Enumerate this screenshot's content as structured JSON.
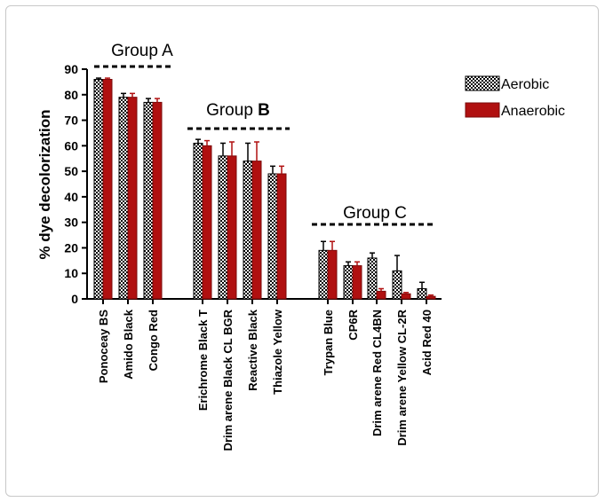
{
  "chart_data": {
    "type": "bar",
    "ylabel": "% dye decolorization",
    "xlabel": "",
    "ylim": [
      0,
      90
    ],
    "yticks": [
      0,
      10,
      20,
      30,
      40,
      50,
      60,
      70,
      80,
      90
    ],
    "grid": false,
    "legend_position": "top-right",
    "categories": [
      "Ponoceay BS",
      "Amido Black",
      "Congo Red",
      "Erichrome Black T",
      "Drim arene Black CL BGR",
      "Reactive Black",
      "Thiazole Yellow",
      "Trypan Blue",
      "CP6R",
      "Drim arene Red CL4BN",
      "Drim arene Yellow CL-2R",
      "Acid Red 40"
    ],
    "series": [
      {
        "name": "Aerobic",
        "color": "#000000",
        "pattern": "checker",
        "values": [
          86,
          79,
          77,
          61,
          56,
          54,
          49,
          19,
          13,
          16,
          11,
          4
        ],
        "errors": [
          0.5,
          1.5,
          1.5,
          1.5,
          5,
          7,
          3,
          3.5,
          1.5,
          2,
          6,
          2.5
        ]
      },
      {
        "name": "Anaerobic",
        "color": "#b01010",
        "pattern": "solid",
        "values": [
          86,
          79,
          77,
          60,
          56,
          54,
          49,
          19,
          13,
          3,
          2,
          1
        ],
        "errors": [
          0.5,
          1.5,
          1.5,
          2,
          5.5,
          7.5,
          3,
          3.5,
          1.5,
          1,
          0.5,
          0.5
        ]
      }
    ],
    "groups": [
      {
        "title_prefix": "Group ",
        "title_bold": "",
        "title_letter": "A",
        "members": [
          0,
          1,
          2
        ]
      },
      {
        "title_prefix": "Group ",
        "title_bold": "B",
        "title_letter": "",
        "members": [
          3,
          4,
          5,
          6
        ]
      },
      {
        "title_prefix": "Group ",
        "title_bold": "",
        "title_letter": "C",
        "members": [
          7,
          8,
          9,
          10,
          11
        ]
      }
    ]
  }
}
